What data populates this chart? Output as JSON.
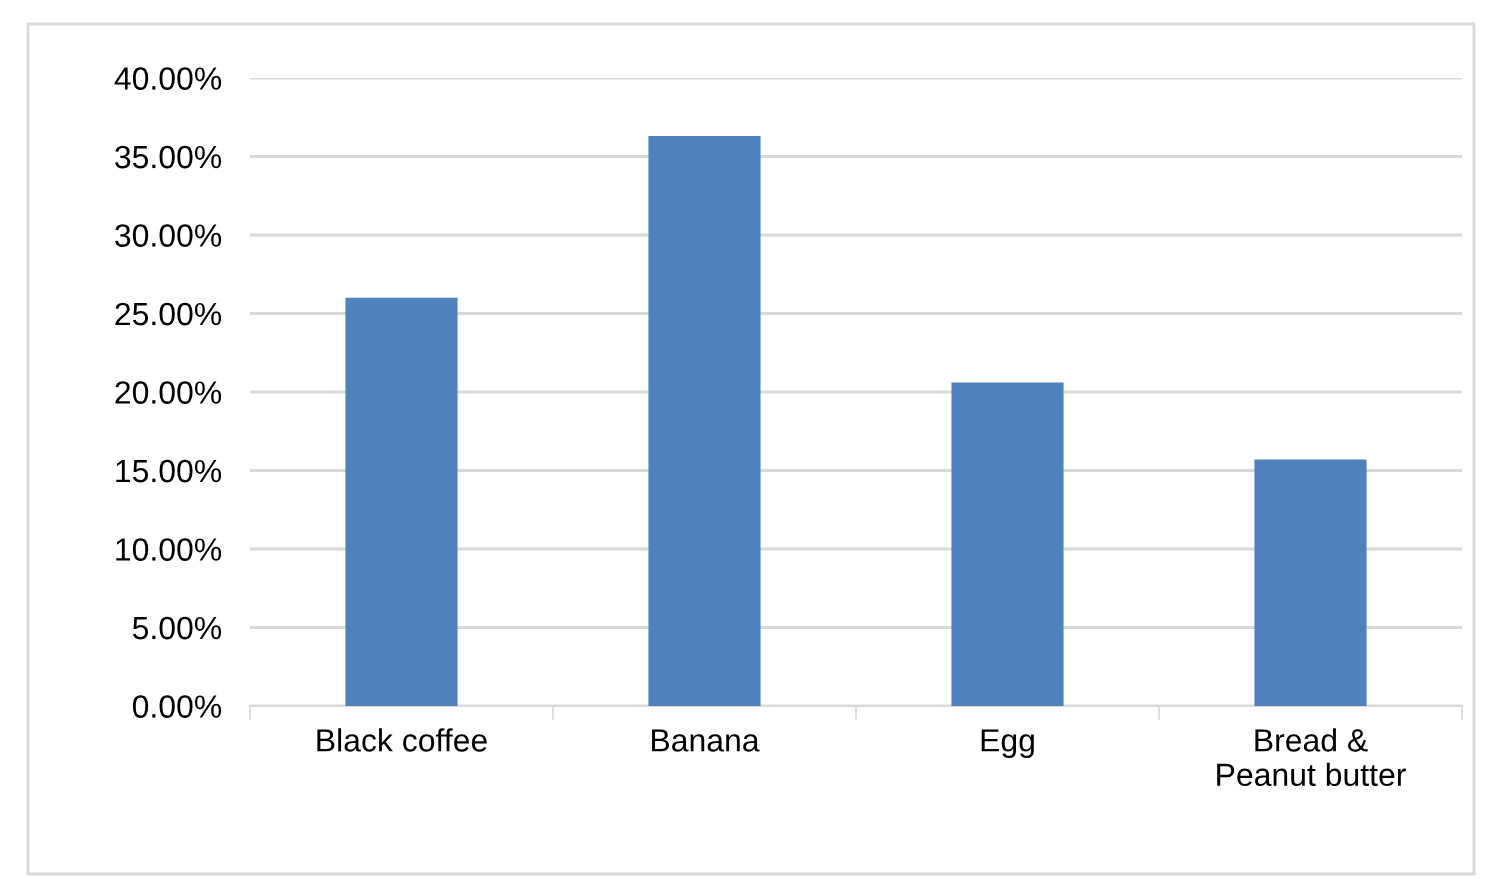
{
  "chart_data": {
    "type": "bar",
    "categories": [
      "Black coffee",
      "Banana",
      "Egg",
      "Bread &\nPeanut butter"
    ],
    "values": [
      26.0,
      36.3,
      20.6,
      15.7
    ],
    "color": "#4f81bd",
    "ylim": [
      0,
      40
    ],
    "yticks": [
      {
        "value": 0,
        "label": "0.00%"
      },
      {
        "value": 5,
        "label": "5.00%"
      },
      {
        "value": 10,
        "label": "10.00%"
      },
      {
        "value": 15,
        "label": "15.00%"
      },
      {
        "value": 20,
        "label": "20.00%"
      },
      {
        "value": 25,
        "label": "25.00%"
      },
      {
        "value": 30,
        "label": "30.00%"
      },
      {
        "value": 35,
        "label": "35.00%"
      },
      {
        "value": 40,
        "label": "40.00%"
      }
    ],
    "grid": "y"
  }
}
